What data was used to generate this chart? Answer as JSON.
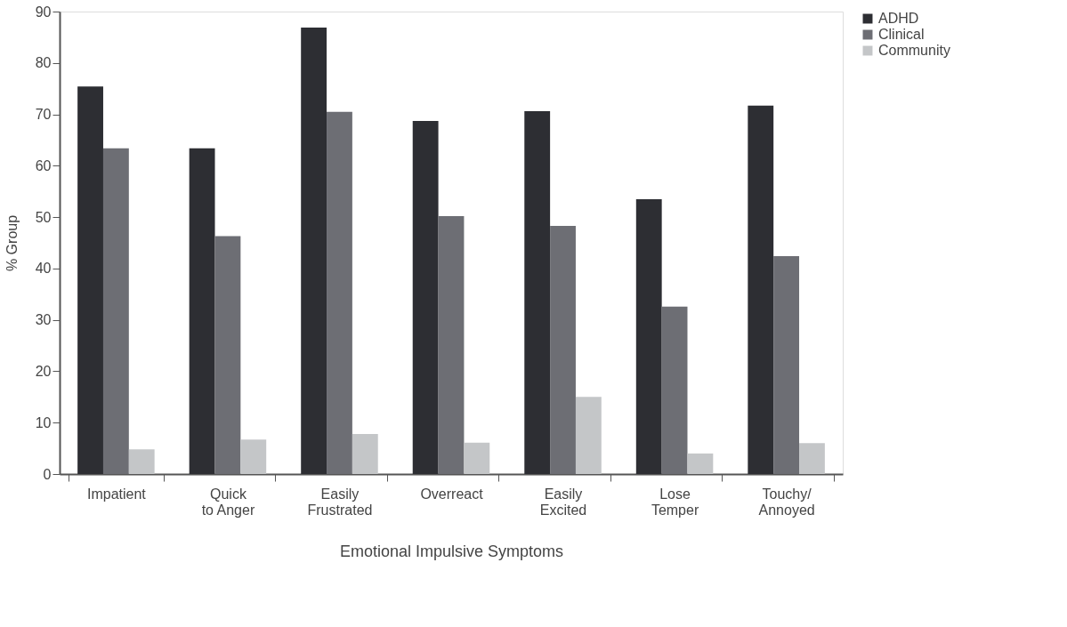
{
  "chart_data": {
    "type": "bar",
    "xlabel": "Emotional Impulsive Symptoms",
    "ylabel": "% Group",
    "categories": [
      "Impatient",
      "Quick\nto Anger",
      "Easily\nFrustrated",
      "Overreact",
      "Easily\nExcited",
      "Lose\nTemper",
      "Touchy/\nAnnoyed"
    ],
    "series": [
      {
        "name": "ADHD",
        "color": "#2d2e33",
        "values": [
          75.4,
          63.4,
          86.9,
          68.7,
          70.6,
          53.5,
          71.7
        ]
      },
      {
        "name": "Clinical",
        "color": "#6d6e74",
        "values": [
          63.4,
          46.3,
          70.5,
          50.2,
          48.3,
          32.6,
          42.4
        ]
      },
      {
        "name": "Community",
        "color": "#c4c6c8",
        "values": [
          4.8,
          6.7,
          7.8,
          6.1,
          15.0,
          4.0,
          6.0
        ]
      }
    ],
    "ylim": [
      0,
      90
    ],
    "yticks": [
      0,
      10,
      20,
      30,
      40,
      50,
      60,
      70,
      80,
      90
    ],
    "grid": false,
    "legend": "top right"
  }
}
